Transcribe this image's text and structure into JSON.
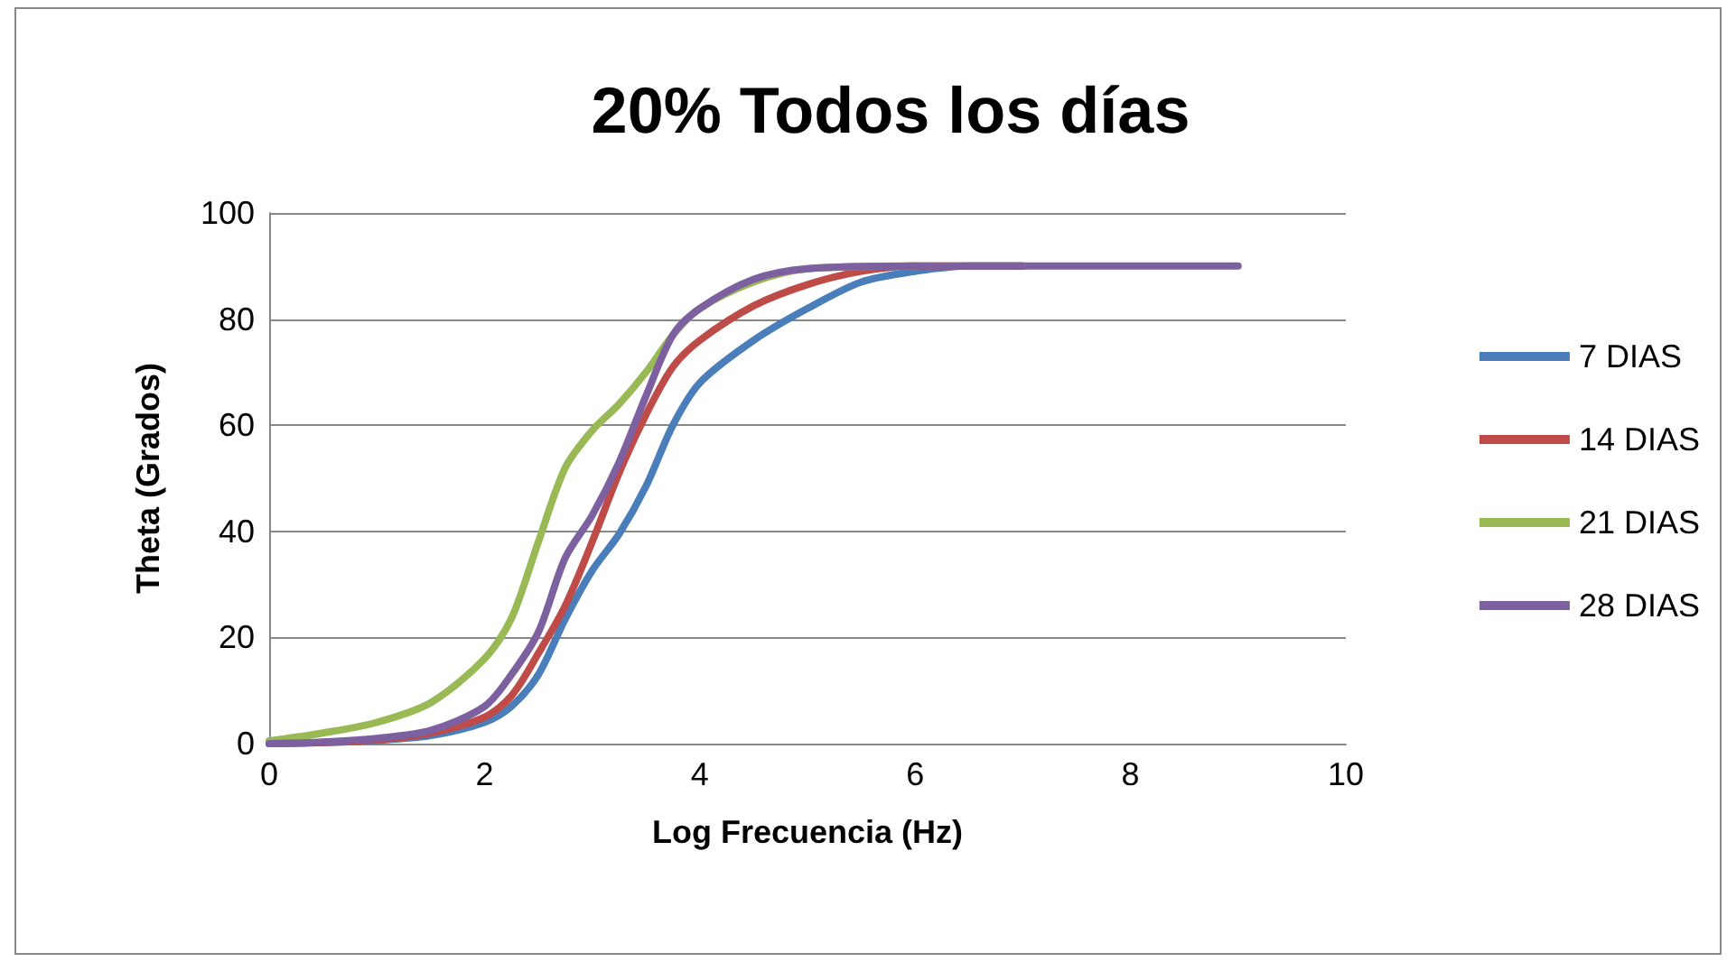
{
  "chart_data": {
    "type": "line",
    "title": "20% Todos los días",
    "xlabel": "Log Frecuencia (Hz)",
    "ylabel": "Theta (Grados)",
    "xlim": [
      0,
      10
    ],
    "xticks": [
      0,
      2,
      4,
      6,
      8,
      10
    ],
    "ylim": [
      0,
      100
    ],
    "yticks": [
      0,
      20,
      40,
      60,
      80,
      100
    ],
    "grid": "y",
    "legend": "right",
    "marker": "none",
    "line_style": "solid",
    "series": [
      {
        "name": "7 DIAS",
        "color": "#4a7ebb",
        "x": [
          0,
          0.5,
          1,
          1.5,
          2,
          2.25,
          2.5,
          2.75,
          3,
          3.25,
          3.5,
          3.75,
          4,
          4.5,
          5,
          5.5,
          6,
          6.5,
          7
        ],
        "values": [
          0,
          0.2,
          0.6,
          1.5,
          4,
          7,
          13,
          23.5,
          32.6,
          39.5,
          48.5,
          60,
          68,
          76,
          82,
          87,
          89,
          90,
          90
        ]
      },
      {
        "name": "14 DIAS",
        "color": "#be4b48",
        "x": [
          0,
          0.5,
          1,
          1.5,
          2,
          2.25,
          2.5,
          2.75,
          3,
          3.25,
          3.5,
          3.75,
          4,
          4.5,
          5,
          5.5,
          6,
          7
        ],
        "values": [
          0,
          0.2,
          0.7,
          2,
          5,
          9,
          17,
          26,
          38,
          51,
          62,
          71,
          76,
          82.5,
          86.5,
          89,
          90,
          90
        ]
      },
      {
        "name": "21 DIAS",
        "color": "#98b954",
        "x": [
          0,
          0.5,
          1,
          1.5,
          2,
          2.25,
          2.5,
          2.75,
          3,
          3.25,
          3.5,
          3.75,
          4,
          4.5,
          5,
          6
        ],
        "values": [
          0.5,
          2,
          4,
          7.7,
          16,
          23.6,
          38,
          52,
          59,
          64,
          70,
          77,
          82,
          87,
          89.5,
          90
        ]
      },
      {
        "name": "28 DIAS",
        "color": "#7d60a0",
        "x": [
          0,
          0.5,
          1,
          1.5,
          2,
          2.25,
          2.5,
          2.75,
          3,
          3.25,
          3.5,
          3.75,
          4,
          4.5,
          5,
          6,
          7,
          8,
          9
        ],
        "values": [
          0,
          0.3,
          1,
          2.5,
          7,
          13,
          21,
          35,
          43,
          53,
          65.5,
          77,
          82,
          87.5,
          89.5,
          90,
          90,
          90,
          90
        ]
      }
    ]
  }
}
